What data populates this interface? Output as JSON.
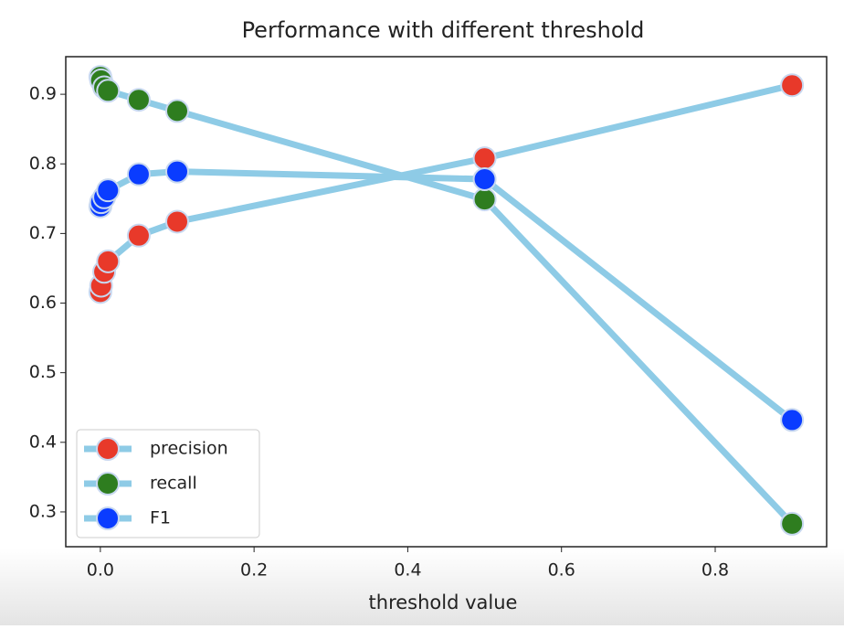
{
  "chart_data": {
    "type": "line",
    "title": "Performance with different threshold",
    "x_label": "threshold value",
    "x": [
      0,
      0.001,
      0.005,
      0.01,
      0.05,
      0.1,
      0.5,
      0.9
    ],
    "line_color": "#8ecbe6",
    "series": [
      {
        "name": "precision",
        "color": "#e8392a",
        "values": [
          0.616,
          0.625,
          0.645,
          0.66,
          0.697,
          0.717,
          0.808,
          0.913
        ]
      },
      {
        "name": "recall",
        "color": "#2e7d1f",
        "values": [
          0.925,
          0.92,
          0.91,
          0.905,
          0.892,
          0.876,
          0.749,
          0.283
        ]
      },
      {
        "name": "F1",
        "color": "#0a3cff",
        "values": [
          0.739,
          0.745,
          0.752,
          0.762,
          0.785,
          0.789,
          0.778,
          0.432
        ]
      }
    ],
    "xlim": [
      -0.045,
      0.945
    ],
    "ylim": [
      0.25,
      0.954
    ],
    "xticks": [
      {
        "value": 0,
        "label": "0.0"
      },
      0.2,
      0.4,
      0.6,
      0.8
    ],
    "yticks": [
      0.3,
      0.4,
      0.5,
      0.6,
      0.7,
      0.8,
      0.9
    ],
    "legend": "lower left"
  }
}
